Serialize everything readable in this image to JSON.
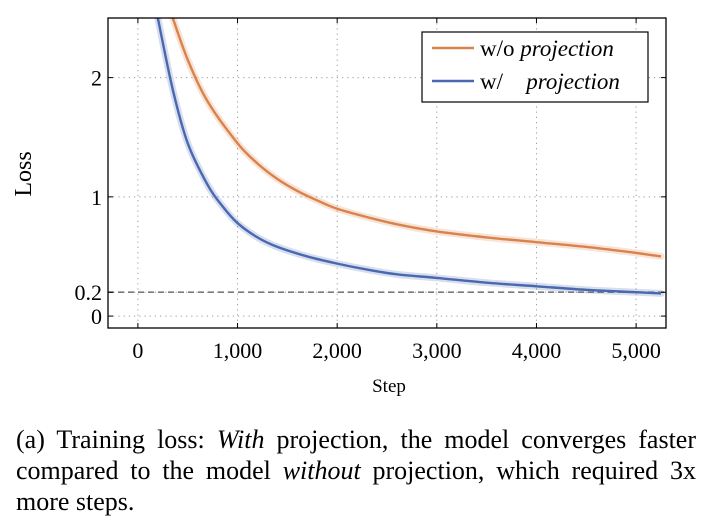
{
  "chart_data": {
    "type": "line",
    "title": "",
    "xlabel": "Step",
    "ylabel": "Loss",
    "xlim": [
      -300,
      5300
    ],
    "xticks": [
      0,
      1000,
      2000,
      3000,
      4000,
      5000
    ],
    "xtick_labels": [
      "0",
      "1,000",
      "2,000",
      "3,000",
      "4,000",
      "5,000"
    ],
    "ylim": [
      -0.1,
      2.5
    ],
    "yticks": [
      0,
      0.2,
      1,
      2
    ],
    "ytick_labels": [
      "0",
      "0.2",
      "1",
      "2"
    ],
    "grid": true,
    "legend_position": "top-right",
    "reference_line": {
      "y": 0.2,
      "style": "dashed",
      "color": "#7a7a7a"
    },
    "series": [
      {
        "name": "w/o projection",
        "legend_plain": "w/o ",
        "legend_italic": "projection",
        "color": "#d9824b",
        "x": [
          350,
          500,
          700,
          1000,
          1200,
          1400,
          1600,
          1800,
          2000,
          2300,
          2600,
          3000,
          3500,
          4000,
          4500,
          5000,
          5250
        ],
        "y": [
          2.5,
          2.15,
          1.8,
          1.45,
          1.28,
          1.15,
          1.05,
          0.97,
          0.9,
          0.83,
          0.77,
          0.71,
          0.66,
          0.62,
          0.58,
          0.53,
          0.5
        ]
      },
      {
        "name": "w/ projection",
        "legend_plain": "w/   ",
        "legend_italic": "projection",
        "color": "#4a68b0",
        "x": [
          200,
          350,
          500,
          700,
          850,
          1000,
          1200,
          1400,
          1700,
          2000,
          2300,
          2600,
          3000,
          3500,
          4000,
          4500,
          5000,
          5250
        ],
        "y": [
          2.5,
          1.9,
          1.45,
          1.1,
          0.92,
          0.78,
          0.66,
          0.58,
          0.5,
          0.44,
          0.39,
          0.35,
          0.32,
          0.28,
          0.25,
          0.22,
          0.2,
          0.19
        ]
      }
    ]
  },
  "caption": {
    "prefix": "(a) Training loss: ",
    "italic1": "With",
    "middle": " projection, the model converges faster compared to the model ",
    "italic2": "without",
    "suffix": " projection, which required 3x more steps."
  }
}
